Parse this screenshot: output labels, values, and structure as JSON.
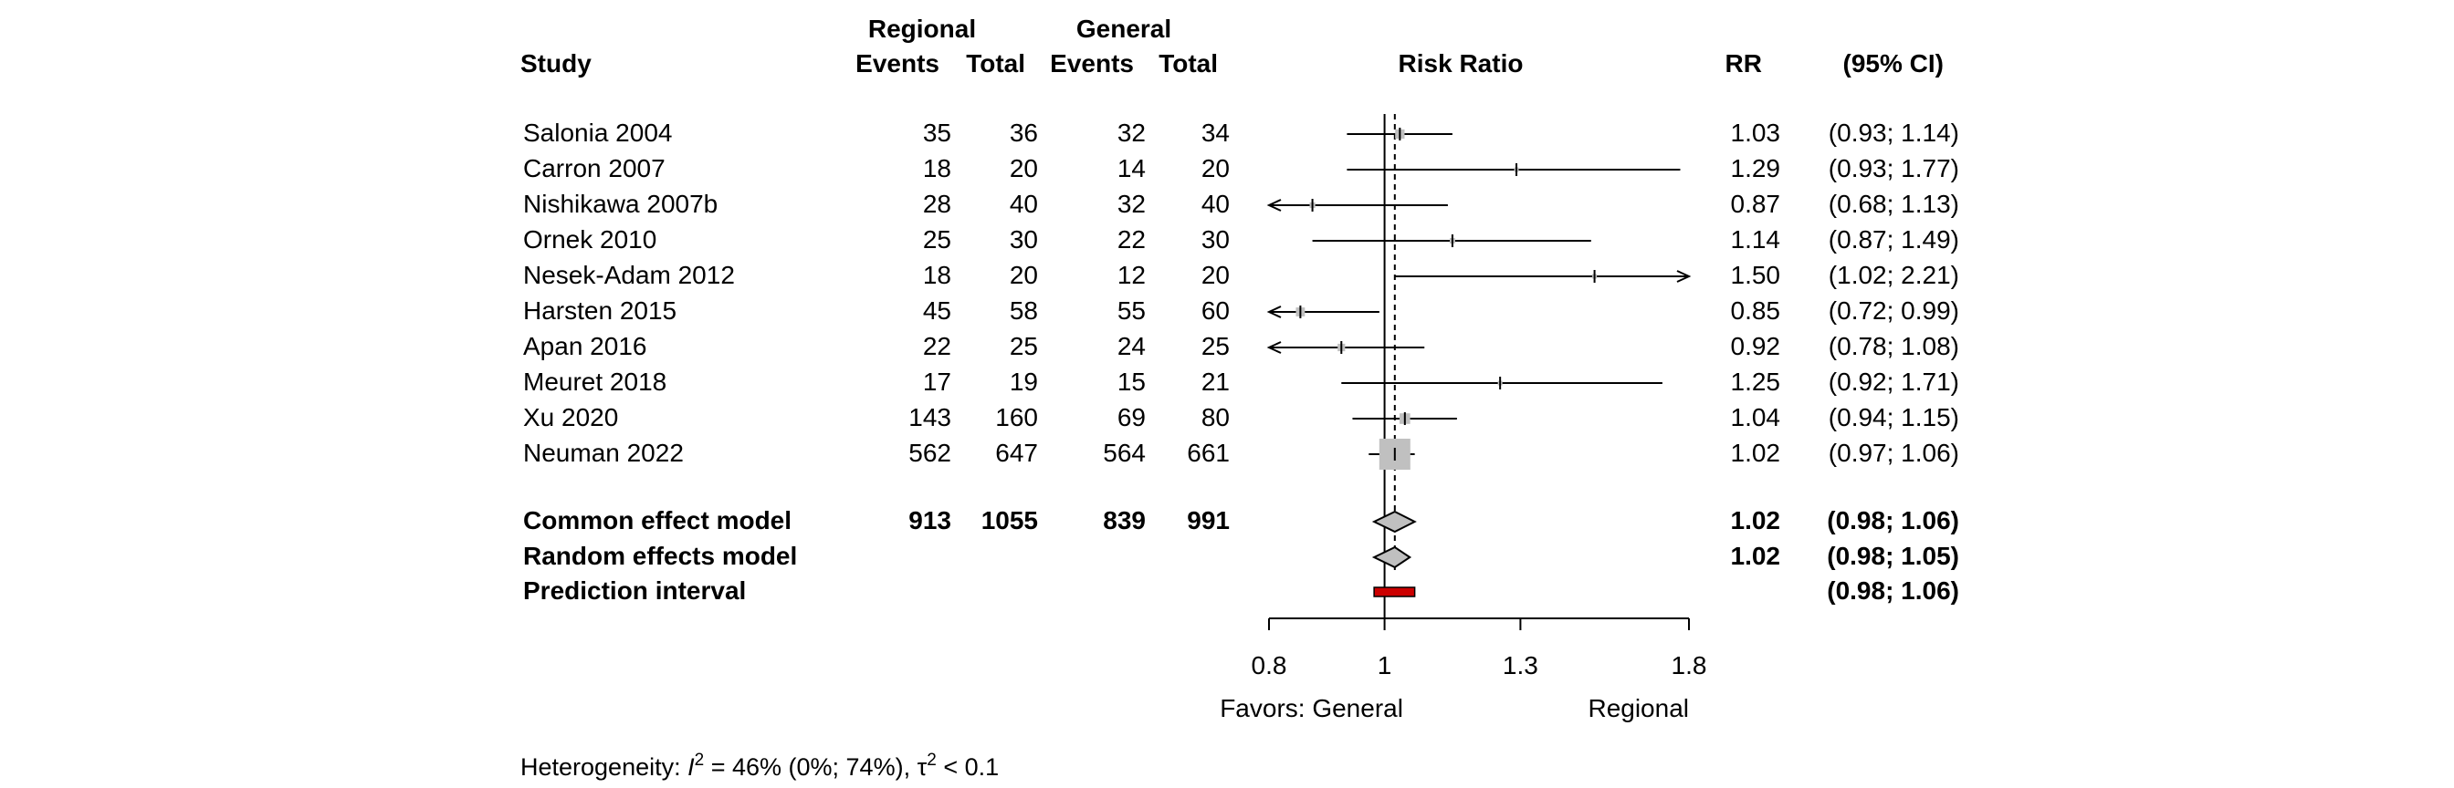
{
  "headers": {
    "study": "Study",
    "regional": "Regional",
    "general": "General",
    "events": "Events",
    "total": "Total",
    "risk_ratio": "Risk Ratio",
    "rr": "RR",
    "ci": "(95% CI)"
  },
  "chart_data": {
    "type": "forest",
    "xlim": [
      0.8,
      1.8
    ],
    "xscale": "log",
    "ticks": [
      0.8,
      1,
      1.3,
      1.8
    ],
    "tick_labels": [
      "0.8",
      "1",
      "1.3",
      "1.8"
    ],
    "reference_line": 1,
    "pooled_line": 1.02,
    "xlabel_left": "Favors: General",
    "xlabel_right": "Regional",
    "studies": [
      {
        "name": "Salonia 2004",
        "reg_events": "35",
        "reg_total": "36",
        "gen_events": "32",
        "gen_total": "34",
        "rr": 1.03,
        "lo": 0.93,
        "hi": 1.14,
        "weight": 5.5,
        "rr_text": "1.03",
        "ci_text": "(0.93; 1.14)"
      },
      {
        "name": "Carron 2007",
        "reg_events": "18",
        "reg_total": "20",
        "gen_events": "14",
        "gen_total": "20",
        "rr": 1.29,
        "lo": 0.93,
        "hi": 1.77,
        "weight": 1.0,
        "rr_text": "1.29",
        "ci_text": "(0.93; 1.77)"
      },
      {
        "name": "Nishikawa 2007b",
        "reg_events": "28",
        "reg_total": "40",
        "gen_events": "32",
        "gen_total": "40",
        "rr": 0.87,
        "lo": 0.68,
        "hi": 1.13,
        "weight": 2.0,
        "rr_text": "0.87",
        "ci_text": "(0.68; 1.13)"
      },
      {
        "name": "Ornek 2010",
        "reg_events": "25",
        "reg_total": "30",
        "gen_events": "22",
        "gen_total": "30",
        "rr": 1.14,
        "lo": 0.87,
        "hi": 1.49,
        "weight": 1.8,
        "rr_text": "1.14",
        "ci_text": "(0.87; 1.49)"
      },
      {
        "name": "Nesek-Adam 2012",
        "reg_events": "18",
        "reg_total": "20",
        "gen_events": "12",
        "gen_total": "20",
        "rr": 1.5,
        "lo": 1.02,
        "hi": 2.21,
        "weight": 0.8,
        "rr_text": "1.50",
        "ci_text": "(1.02; 2.21)"
      },
      {
        "name": "Harsten 2015",
        "reg_events": "45",
        "reg_total": "58",
        "gen_events": "55",
        "gen_total": "60",
        "rr": 0.85,
        "lo": 0.72,
        "hi": 0.99,
        "weight": 5.0,
        "rr_text": "0.85",
        "ci_text": "(0.72; 0.99)"
      },
      {
        "name": "Apan 2016",
        "reg_events": "22",
        "reg_total": "25",
        "gen_events": "24",
        "gen_total": "25",
        "rr": 0.92,
        "lo": 0.78,
        "hi": 1.08,
        "weight": 3.5,
        "rr_text": "0.92",
        "ci_text": "(0.78; 1.08)"
      },
      {
        "name": "Meuret 2018",
        "reg_events": "17",
        "reg_total": "19",
        "gen_events": "15",
        "gen_total": "21",
        "rr": 1.25,
        "lo": 0.92,
        "hi": 1.71,
        "weight": 1.2,
        "rr_text": "1.25",
        "ci_text": "(0.92; 1.71)"
      },
      {
        "name": "Xu 2020",
        "reg_events": "143",
        "reg_total": "160",
        "gen_events": "69",
        "gen_total": "80",
        "rr": 1.04,
        "lo": 0.94,
        "hi": 1.15,
        "weight": 7.0,
        "rr_text": "1.04",
        "ci_text": "(0.94; 1.15)"
      },
      {
        "name": "Neuman 2022",
        "reg_events": "562",
        "reg_total": "647",
        "gen_events": "564",
        "gen_total": "661",
        "rr": 1.02,
        "lo": 0.97,
        "hi": 1.06,
        "weight": 60.0,
        "rr_text": "1.02",
        "ci_text": "(0.97; 1.06)"
      }
    ],
    "common": {
      "label": "Common effect model",
      "reg_events": "913",
      "reg_total": "1055",
      "gen_events": "839",
      "gen_total": "991",
      "rr": 1.02,
      "lo": 0.98,
      "hi": 1.06,
      "rr_text": "1.02",
      "ci_text": "(0.98; 1.06)"
    },
    "random": {
      "label": "Random effects model",
      "rr": 1.02,
      "lo": 0.98,
      "hi": 1.05,
      "rr_text": "1.02",
      "ci_text": "(0.98; 1.05)"
    },
    "prediction": {
      "label": "Prediction interval",
      "lo": 0.98,
      "hi": 1.06,
      "ci_text": "(0.98; 1.06)"
    },
    "heterogeneity": {
      "prefix": "Heterogeneity: ",
      "i2_symbol": "I",
      "i2_text": " = 46% (0%; 74%), ",
      "tau2_symbol": "τ",
      "tau2_text": " < 0.1",
      "superscript": "2"
    },
    "colors": {
      "square": "#c0c0c0",
      "diamond": "#c0c0c0",
      "prediction": "#cc0000",
      "line": "#000000"
    }
  }
}
